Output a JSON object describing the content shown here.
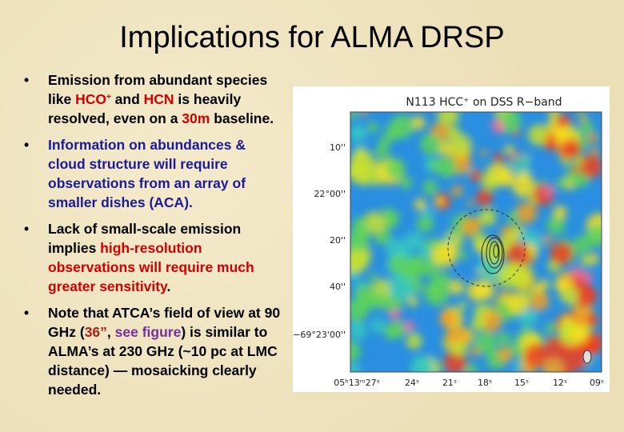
{
  "title": "Implications for ALMA DRSP",
  "bullets": [
    [
      {
        "text": "Emission from abundant species like ",
        "color": "#000000"
      },
      {
        "text": "HCO",
        "color": "#d00000"
      },
      {
        "text": "+",
        "color": "#d00000",
        "style": "sup"
      },
      {
        "text": " and ",
        "color": "#000000"
      },
      {
        "text": "HCN",
        "color": "#d00000"
      },
      {
        "text": " is heavily resolved, even on a ",
        "color": "#000000"
      },
      {
        "text": "30m",
        "color": "#d00000"
      },
      {
        "text": " baseline.",
        "color": "#000000"
      }
    ],
    [
      {
        "text": "Information on abundances & cloud structure will require observations from an array of smaller dishes (ACA).",
        "color": "#1a1a9c"
      }
    ],
    [
      {
        "text": "Lack of small-scale emission implies ",
        "color": "#000000"
      },
      {
        "text": "high-resolution observations will require much greater sensitivity",
        "color": "#d00000"
      },
      {
        "text": ".",
        "color": "#000000"
      }
    ],
    [
      {
        "text": "Note that ATCA’s field of view at 90 GHz (",
        "color": "#000000"
      },
      {
        "text": "36”",
        "color": "#b02020"
      },
      {
        "text": ", ",
        "color": "#000000"
      },
      {
        "text": "see figure",
        "color": "#7030a0"
      },
      {
        "text": ") is similar to ALMA’s at 230 GHz (~10 pc at LMC distance) — mosaicking clearly needed.",
        "color": "#000000"
      }
    ]
  ],
  "figure": {
    "title": "N113 HCC⁺ on DSS R−band",
    "y_labels": [
      "10''",
      "22°00''",
      "20''",
      "40''",
      "−69°23'00''"
    ],
    "x_labels": [
      "05ʰ13ᵐ27ˢ",
      "24ˢ",
      "21ˢ",
      "18ˢ",
      "15ˢ",
      "12ˢ",
      "09ˢ"
    ]
  }
}
